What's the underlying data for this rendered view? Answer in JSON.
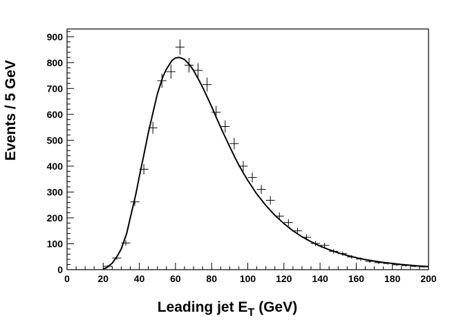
{
  "chart_data": {
    "type": "scatter",
    "title": "",
    "xlabel_main": "Leading jet E",
    "xlabel_sub": "T",
    "xlabel_unit": "(GeV)",
    "ylabel": "Events / 5 GeV",
    "xlim": [
      0,
      200
    ],
    "ylim": [
      0,
      930
    ],
    "xticks": [
      0,
      20,
      40,
      60,
      80,
      100,
      120,
      140,
      160,
      180,
      200
    ],
    "yticks": [
      0,
      100,
      200,
      300,
      400,
      500,
      600,
      700,
      800,
      900
    ],
    "grid": false,
    "legend": "none",
    "series": [
      {
        "kind": "points-with-error-crosses",
        "bin_width": 5,
        "x": [
          22.5,
          27.5,
          32.5,
          37.5,
          42.5,
          47.5,
          52.5,
          57.5,
          62.5,
          67.5,
          72.5,
          77.5,
          82.5,
          87.5,
          92.5,
          97.5,
          102.5,
          107.5,
          112.5,
          117.5,
          122.5,
          127.5,
          132.5,
          137.5,
          142.5,
          147.5,
          152.5,
          157.5,
          162.5,
          167.5,
          172.5,
          177.5,
          182.5,
          187.5,
          192.5,
          197.5
        ],
        "y": [
          13,
          45,
          103,
          262,
          388,
          548,
          730,
          765,
          860,
          790,
          770,
          715,
          608,
          553,
          487,
          400,
          356,
          310,
          268,
          207,
          182,
          150,
          125,
          101,
          94,
          71,
          62,
          49,
          41,
          32,
          27,
          24,
          19,
          16,
          13,
          11
        ]
      },
      {
        "kind": "fit-curve",
        "x": [
          20,
          22,
          25,
          28,
          30,
          33,
          35,
          38,
          40,
          43,
          45,
          48,
          50,
          53,
          55,
          58,
          60,
          62,
          63,
          65,
          68,
          70,
          73,
          75,
          78,
          80,
          83,
          85,
          88,
          90,
          93,
          95,
          98,
          100,
          105,
          110,
          115,
          120,
          125,
          130,
          135,
          140,
          145,
          150,
          155,
          160,
          165,
          170,
          175,
          180,
          185,
          190,
          195,
          200
        ],
        "y": [
          3,
          8,
          25,
          55,
          80,
          140,
          200,
          290,
          360,
          460,
          530,
          620,
          680,
          745,
          775,
          808,
          818,
          820,
          818,
          812,
          790,
          770,
          732,
          705,
          660,
          630,
          582,
          550,
          505,
          475,
          432,
          405,
          368,
          345,
          292,
          248,
          210,
          178,
          150,
          127,
          108,
          91,
          77,
          65,
          55,
          46,
          39,
          33,
          28,
          24,
          20,
          17,
          14,
          12
        ]
      }
    ]
  }
}
